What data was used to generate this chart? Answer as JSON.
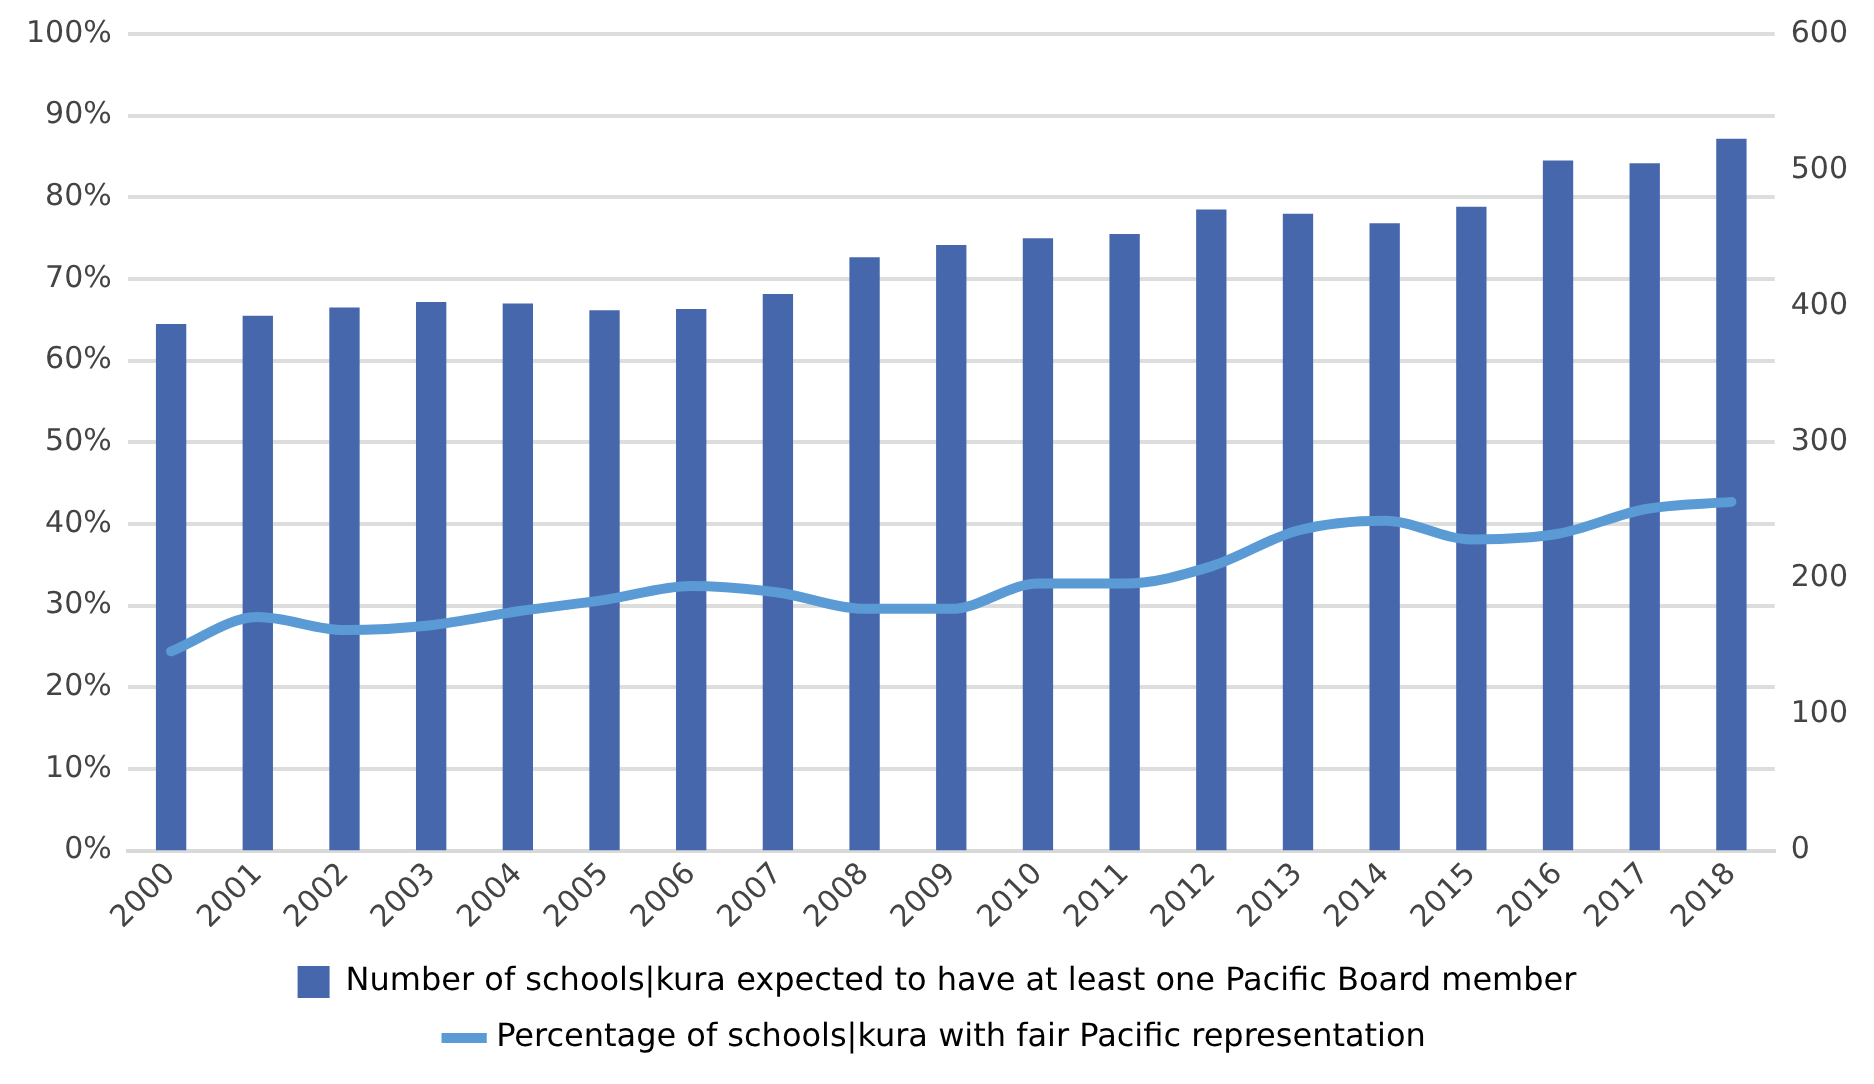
{
  "chart_data": {
    "type": "bar",
    "categories": [
      "2000",
      "2001",
      "2002",
      "2003",
      "2004",
      "2005",
      "2006",
      "2007",
      "2008",
      "2009",
      "2010",
      "2011",
      "2012",
      "2013",
      "2014",
      "2015",
      "2016",
      "2017",
      "2018"
    ],
    "series": [
      {
        "name": "Number of schools|kura expected to have at least one Pacific Board member",
        "axis": "y2",
        "color": "#4767ad",
        "values": [
          387,
          393,
          399,
          403,
          402,
          397,
          398,
          409,
          436,
          445,
          450,
          453,
          471,
          468,
          461,
          473,
          507,
          505,
          523
        ]
      },
      {
        "name": "Percentage of schools|kura with fair Pacific representation",
        "type": "line",
        "axis": "y",
        "color": "#5b9bd5",
        "values": [
          24.4,
          28.6,
          27.0,
          27.6,
          29.3,
          30.7,
          32.4,
          31.6,
          29.6,
          29.6,
          32.7,
          32.7,
          34.8,
          39.2,
          40.4,
          38.1,
          38.8,
          41.8,
          42.7
        ]
      }
    ],
    "ylim": [
      0,
      100
    ],
    "yticks": [
      {
        "value": 0,
        "label": "0%"
      },
      {
        "value": 10,
        "label": "10%"
      },
      {
        "value": 20,
        "label": "20%"
      },
      {
        "value": 30,
        "label": "30%"
      },
      {
        "value": 40,
        "label": "40%"
      },
      {
        "value": 50,
        "label": "50%"
      },
      {
        "value": 60,
        "label": "60%"
      },
      {
        "value": 70,
        "label": "70%"
      },
      {
        "value": 80,
        "label": "80%"
      },
      {
        "value": 90,
        "label": "90%"
      },
      {
        "value": 100,
        "label": "100%"
      }
    ],
    "y2lim": [
      0,
      600
    ],
    "y2ticks": [
      0,
      100,
      200,
      300,
      400,
      500,
      600
    ],
    "grid": "y",
    "legend": "bottom",
    "marker": "none",
    "line_style": "solid"
  }
}
